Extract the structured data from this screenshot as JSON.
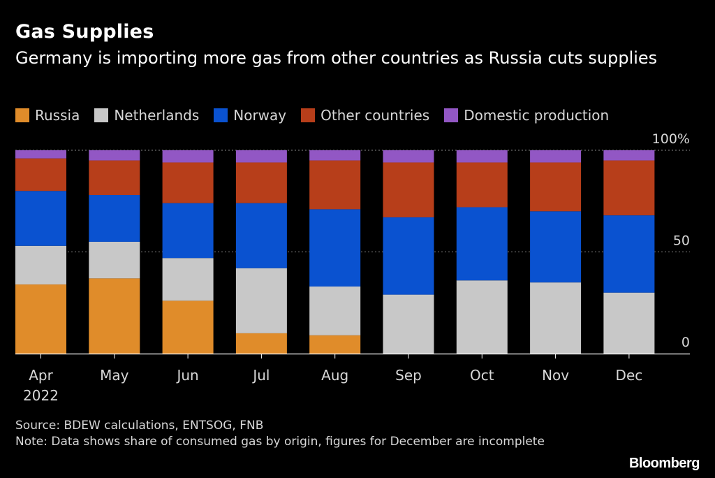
{
  "header": {
    "title": "Gas Supplies",
    "subtitle": "Germany is importing more gas from other countries as Russia cuts supplies"
  },
  "legend": [
    {
      "label": "Russia",
      "color": "#e08c2a"
    },
    {
      "label": "Netherlands",
      "color": "#c8c8c8"
    },
    {
      "label": "Norway",
      "color": "#0a52d0"
    },
    {
      "label": "Other countries",
      "color": "#b73e1a"
    },
    {
      "label": "Domestic production",
      "color": "#9257c4"
    }
  ],
  "footer": {
    "source": "Source: BDEW calculations, ENTSOG, FNB",
    "note": "Note: Data shows share of consumed gas by origin, figures for December are incomplete"
  },
  "brand": "Bloomberg",
  "chart_data": {
    "type": "bar",
    "stacked": true,
    "title": "Gas Supplies",
    "categories": [
      "Apr",
      "May",
      "Jun",
      "Jul",
      "Aug",
      "Sep",
      "Oct",
      "Nov",
      "Dec"
    ],
    "category_sublabels": [
      "2022",
      "",
      "",
      "",
      "",
      "",
      "",
      "",
      ""
    ],
    "y_ticks": [
      {
        "value": 0,
        "label": "0"
      },
      {
        "value": 50,
        "label": "50"
      },
      {
        "value": 100,
        "label": "100%"
      }
    ],
    "ylim": [
      0,
      100
    ],
    "series": [
      {
        "name": "Russia",
        "color": "#e08c2a",
        "values": [
          34,
          37,
          26,
          10,
          9,
          0,
          0,
          0,
          0
        ]
      },
      {
        "name": "Netherlands",
        "color": "#c8c8c8",
        "values": [
          19,
          18,
          21,
          32,
          24,
          29,
          36,
          35,
          30
        ]
      },
      {
        "name": "Norway",
        "color": "#0a52d0",
        "values": [
          27,
          23,
          27,
          32,
          38,
          38,
          36,
          35,
          38
        ]
      },
      {
        "name": "Other countries",
        "color": "#b73e1a",
        "values": [
          16,
          17,
          20,
          20,
          24,
          27,
          22,
          24,
          27
        ]
      },
      {
        "name": "Domestic production",
        "color": "#9257c4",
        "values": [
          4,
          5,
          6,
          6,
          5,
          6,
          6,
          6,
          5
        ]
      }
    ]
  }
}
